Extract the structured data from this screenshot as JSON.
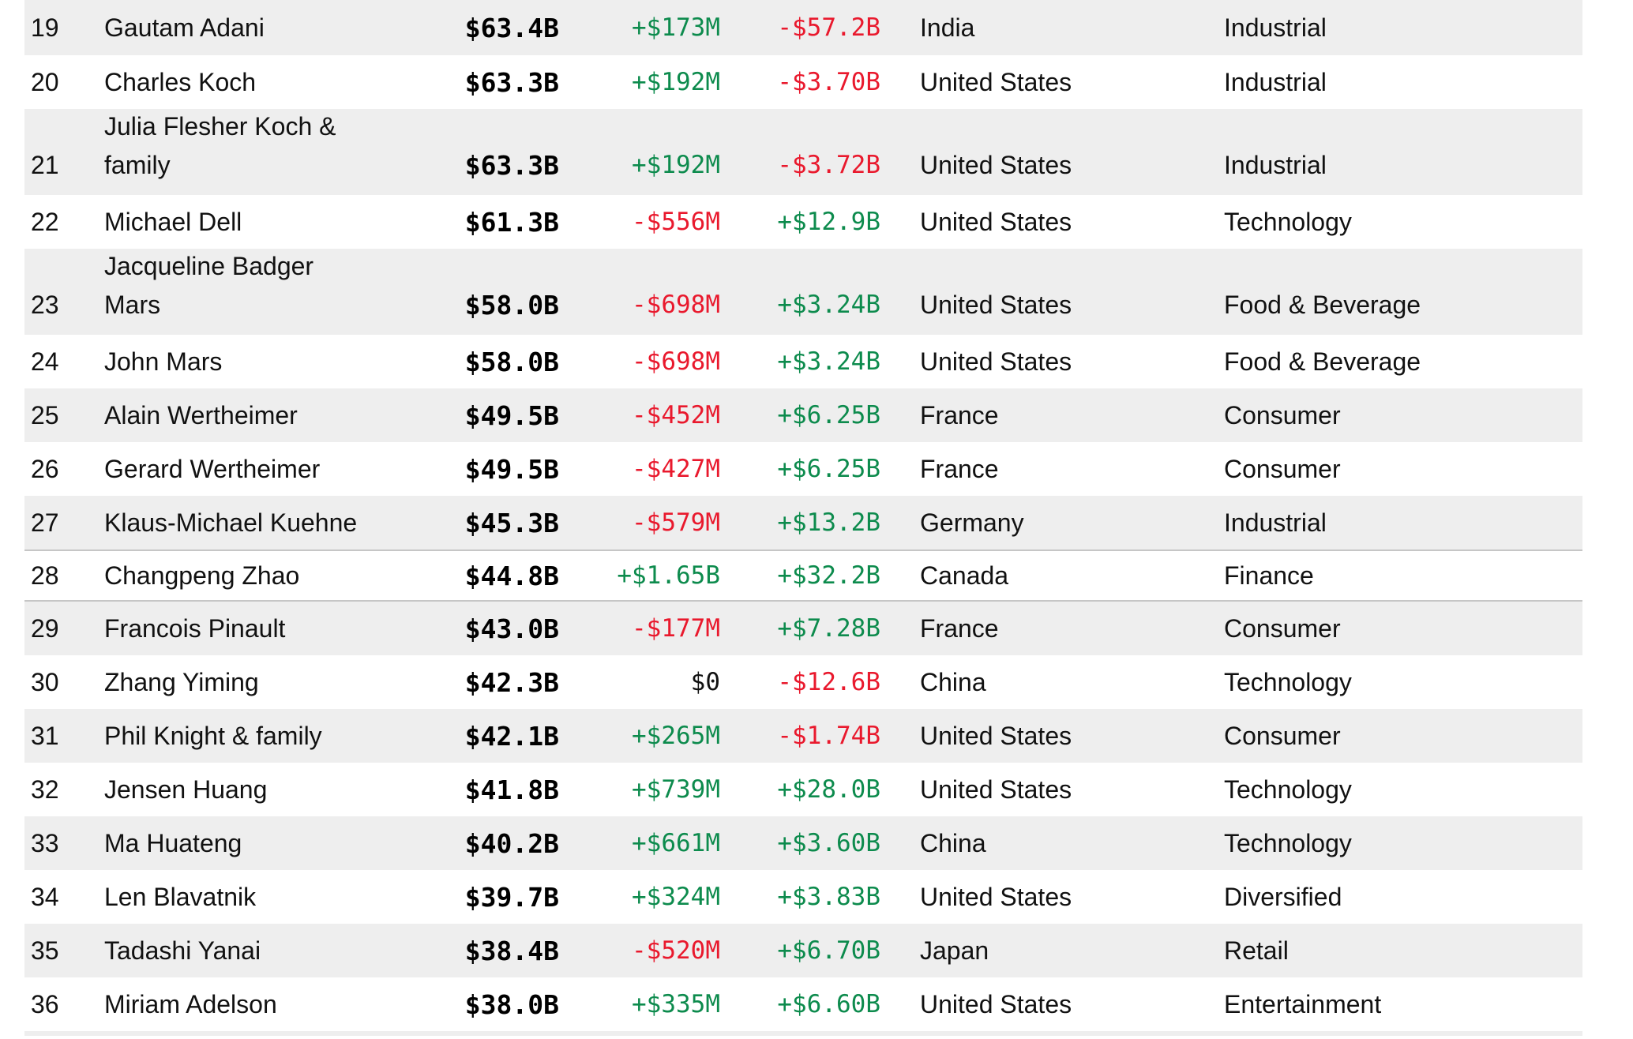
{
  "colors": {
    "positive_change": "#0d8b4d",
    "negative_change": "#e9192d",
    "row_stripe": "#eeeeee",
    "row_divider": "#c6c6c6",
    "net_worth_text": "#000000"
  },
  "table": {
    "columns": [
      "rank",
      "name",
      "net_worth",
      "daily_change",
      "ytd_change",
      "country",
      "industry"
    ],
    "rows": [
      {
        "rank": "19",
        "name_lines": [
          "Gautam Adani"
        ],
        "net_worth": "$63.4B",
        "daily_change": "+$173M",
        "ytd_change": "-$57.2B",
        "country": "India",
        "industry": "Industrial"
      },
      {
        "rank": "20",
        "name_lines": [
          "Charles Koch"
        ],
        "net_worth": "$63.3B",
        "daily_change": "+$192M",
        "ytd_change": "-$3.70B",
        "country": "United States",
        "industry": "Industrial"
      },
      {
        "rank": "21",
        "name_lines": [
          "Julia Flesher Koch &",
          "family"
        ],
        "net_worth": "$63.3B",
        "daily_change": "+$192M",
        "ytd_change": "-$3.72B",
        "country": "United States",
        "industry": "Industrial"
      },
      {
        "rank": "22",
        "name_lines": [
          "Michael Dell"
        ],
        "net_worth": "$61.3B",
        "daily_change": "-$556M",
        "ytd_change": "+$12.9B",
        "country": "United States",
        "industry": "Technology"
      },
      {
        "rank": "23",
        "name_lines": [
          "Jacqueline Badger",
          "Mars"
        ],
        "net_worth": "$58.0B",
        "daily_change": "-$698M",
        "ytd_change": "+$3.24B",
        "country": "United States",
        "industry": "Food & Beverage"
      },
      {
        "rank": "24",
        "name_lines": [
          "John Mars"
        ],
        "net_worth": "$58.0B",
        "daily_change": "-$698M",
        "ytd_change": "+$3.24B",
        "country": "United States",
        "industry": "Food & Beverage"
      },
      {
        "rank": "25",
        "name_lines": [
          "Alain Wertheimer"
        ],
        "net_worth": "$49.5B",
        "daily_change": "-$452M",
        "ytd_change": "+$6.25B",
        "country": "France",
        "industry": "Consumer"
      },
      {
        "rank": "26",
        "name_lines": [
          "Gerard Wertheimer"
        ],
        "net_worth": "$49.5B",
        "daily_change": "-$427M",
        "ytd_change": "+$6.25B",
        "country": "France",
        "industry": "Consumer"
      },
      {
        "rank": "27",
        "name_lines": [
          "Klaus-Michael Kuehne"
        ],
        "net_worth": "$45.3B",
        "daily_change": "-$579M",
        "ytd_change": "+$13.2B",
        "country": "Germany",
        "industry": "Industrial"
      },
      {
        "rank": "28",
        "name_lines": [
          "Changpeng Zhao"
        ],
        "net_worth": "$44.8B",
        "daily_change": "+$1.65B",
        "ytd_change": "+$32.2B",
        "country": "Canada",
        "industry": "Finance",
        "highlighted": true
      },
      {
        "rank": "29",
        "name_lines": [
          "Francois Pinault"
        ],
        "net_worth": "$43.0B",
        "daily_change": "-$177M",
        "ytd_change": "+$7.28B",
        "country": "France",
        "industry": "Consumer"
      },
      {
        "rank": "30",
        "name_lines": [
          "Zhang Yiming"
        ],
        "net_worth": "$42.3B",
        "daily_change": "$0",
        "ytd_change": "-$12.6B",
        "country": "China",
        "industry": "Technology"
      },
      {
        "rank": "31",
        "name_lines": [
          "Phil Knight & family"
        ],
        "net_worth": "$42.1B",
        "daily_change": "+$265M",
        "ytd_change": "-$1.74B",
        "country": "United States",
        "industry": "Consumer"
      },
      {
        "rank": "32",
        "name_lines": [
          "Jensen Huang"
        ],
        "net_worth": "$41.8B",
        "daily_change": "+$739M",
        "ytd_change": "+$28.0B",
        "country": "United States",
        "industry": "Technology"
      },
      {
        "rank": "33",
        "name_lines": [
          "Ma Huateng"
        ],
        "net_worth": "$40.2B",
        "daily_change": "+$661M",
        "ytd_change": "+$3.60B",
        "country": "China",
        "industry": "Technology"
      },
      {
        "rank": "34",
        "name_lines": [
          "Len Blavatnik"
        ],
        "net_worth": "$39.7B",
        "daily_change": "+$324M",
        "ytd_change": "+$3.83B",
        "country": "United States",
        "industry": "Diversified"
      },
      {
        "rank": "35",
        "name_lines": [
          "Tadashi Yanai"
        ],
        "net_worth": "$38.4B",
        "daily_change": "-$520M",
        "ytd_change": "+$6.70B",
        "country": "Japan",
        "industry": "Retail"
      },
      {
        "rank": "36",
        "name_lines": [
          "Miriam Adelson"
        ],
        "net_worth": "$38.0B",
        "daily_change": "+$335M",
        "ytd_change": "+$6.60B",
        "country": "United States",
        "industry": "Entertainment"
      }
    ]
  }
}
